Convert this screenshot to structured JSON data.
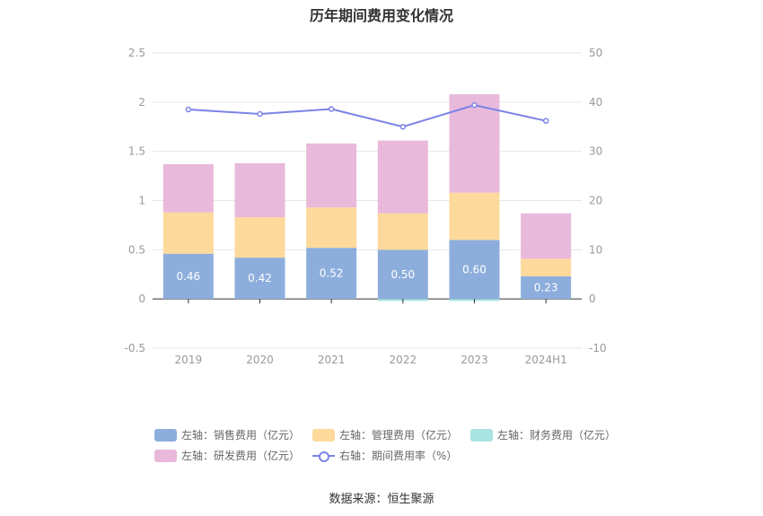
{
  "chart_data": {
    "type": "bar",
    "title": "历年期间费用变化情况",
    "categories": [
      "2019",
      "2020",
      "2021",
      "2022",
      "2023",
      "2024H1"
    ],
    "series": [
      {
        "name": "左轴：销售费用（亿元）",
        "axis": "left",
        "type": "bar",
        "color": "#8daedc",
        "values": [
          0.46,
          0.42,
          0.52,
          0.5,
          0.6,
          0.23
        ],
        "labels": [
          "0.46",
          "0.42",
          "0.52",
          "0.50",
          "0.60",
          "0.23"
        ]
      },
      {
        "name": "左轴：管理费用（亿元）",
        "axis": "left",
        "type": "bar",
        "color": "#fdd99b",
        "values": [
          0.42,
          0.41,
          0.41,
          0.37,
          0.48,
          0.18
        ]
      },
      {
        "name": "左轴：财务费用（亿元）",
        "axis": "left",
        "type": "bar",
        "color": "#a8e4e2",
        "values": [
          0.0,
          0.0,
          0.0,
          -0.02,
          -0.02,
          0.0
        ]
      },
      {
        "name": "左轴：研发费用（亿元）",
        "axis": "left",
        "type": "bar",
        "color": "#e8b9da",
        "values": [
          0.49,
          0.55,
          0.65,
          0.74,
          1.0,
          0.46
        ]
      },
      {
        "name": "右轴：期间费用率（%）",
        "axis": "right",
        "type": "line",
        "color": "#7b83e6",
        "values": [
          38.5,
          37.6,
          38.6,
          35.0,
          39.4,
          36.2
        ]
      }
    ],
    "y_left": {
      "ylim": [
        -0.5,
        2.5
      ],
      "ticks": [
        "2.5",
        "2",
        "1.5",
        "1",
        "0.5",
        "0",
        "-0.5"
      ]
    },
    "y_right": {
      "ylim": [
        -10,
        50
      ],
      "ticks": [
        "50",
        "40",
        "30",
        "20",
        "10",
        "0",
        "-10"
      ]
    },
    "grid": true,
    "legend_position": "bottom"
  },
  "source": "数据来源：恒生聚源"
}
